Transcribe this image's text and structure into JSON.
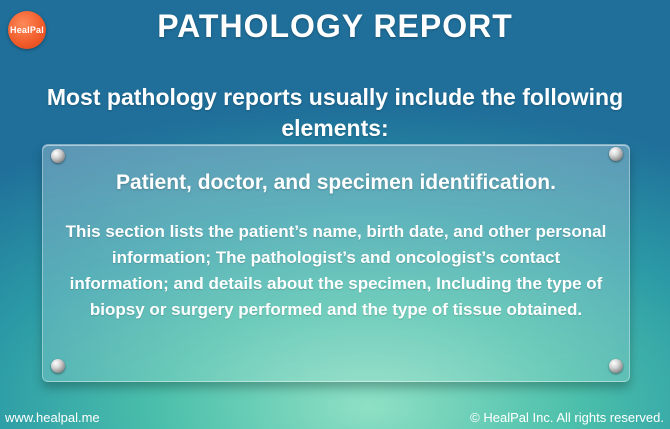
{
  "logo": {
    "text": "HealPal",
    "color": "#f05a28"
  },
  "title": "PATHOLOGY REPORT",
  "subtitle": "Most pathology reports usually include the following elements:",
  "panel": {
    "heading": "Patient, doctor, and specimen identification.",
    "body": "This section lists the patient’s name, birth date, and other personal information; The pathologist’s and oncologist’s contact information; and details about the specimen, Including the type of biopsy or surgery performed and the type of tissue obtained."
  },
  "footer": {
    "website": "www.healpal.me",
    "copyright": "© HealPal Inc. All rights reserved."
  },
  "colors": {
    "background_top": "#1f6f9a",
    "background_bottom": "#8fe0c4",
    "text": "#ffffff"
  }
}
